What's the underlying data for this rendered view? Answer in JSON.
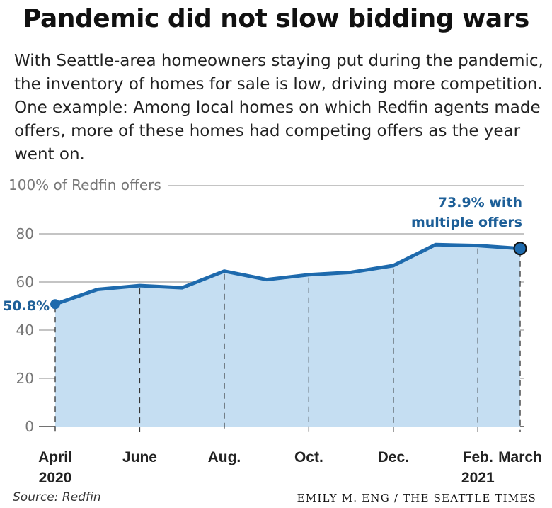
{
  "title": "Pandemic did not slow bidding wars",
  "subtitle": "With Seattle-area homeowners staying put during the pandemic, the inventory of homes for sale is low, driving more competition. One example: Among local homes on which Redfin agents made offers, more of these homes had competing offers as the year went on.",
  "source": "Source: Redfin",
  "credit": "EMILY M. ENG / THE SEATTLE TIMES",
  "colors": {
    "line": "#1e6aad",
    "fill": "#c5def2",
    "annotation": "#1d5f98"
  },
  "chart_data": {
    "type": "area",
    "x": [
      "2020-04",
      "2020-05",
      "2020-06",
      "2020-07",
      "2020-08",
      "2020-09",
      "2020-10",
      "2020-11",
      "2020-12",
      "2021-01",
      "2021-02",
      "2021-03"
    ],
    "values": [
      50.8,
      56.9,
      58.5,
      57.6,
      64.5,
      61.0,
      63.0,
      64.0,
      66.8,
      75.5,
      75.1,
      73.9
    ],
    "ylabel": "100% of Redfin offers",
    "ylim": [
      0,
      100
    ],
    "y_ticks": [
      "0",
      "20",
      "40",
      "60",
      "80"
    ],
    "x_tick_labels": [
      {
        "month": "2020-04",
        "label": "April",
        "year": "2020"
      },
      {
        "month": "2020-06",
        "label": "June",
        "year": ""
      },
      {
        "month": "2020-08",
        "label": "Aug.",
        "year": ""
      },
      {
        "month": "2020-10",
        "label": "Oct.",
        "year": ""
      },
      {
        "month": "2020-12",
        "label": "Dec.",
        "year": ""
      },
      {
        "month": "2021-02",
        "label": "Feb.",
        "year": "2021"
      },
      {
        "month": "2021-03",
        "label": "March",
        "year": ""
      }
    ],
    "annotations": {
      "start": "50.8%",
      "end_line1": "73.9% with",
      "end_line2": "multiple offers"
    },
    "grid": true
  }
}
